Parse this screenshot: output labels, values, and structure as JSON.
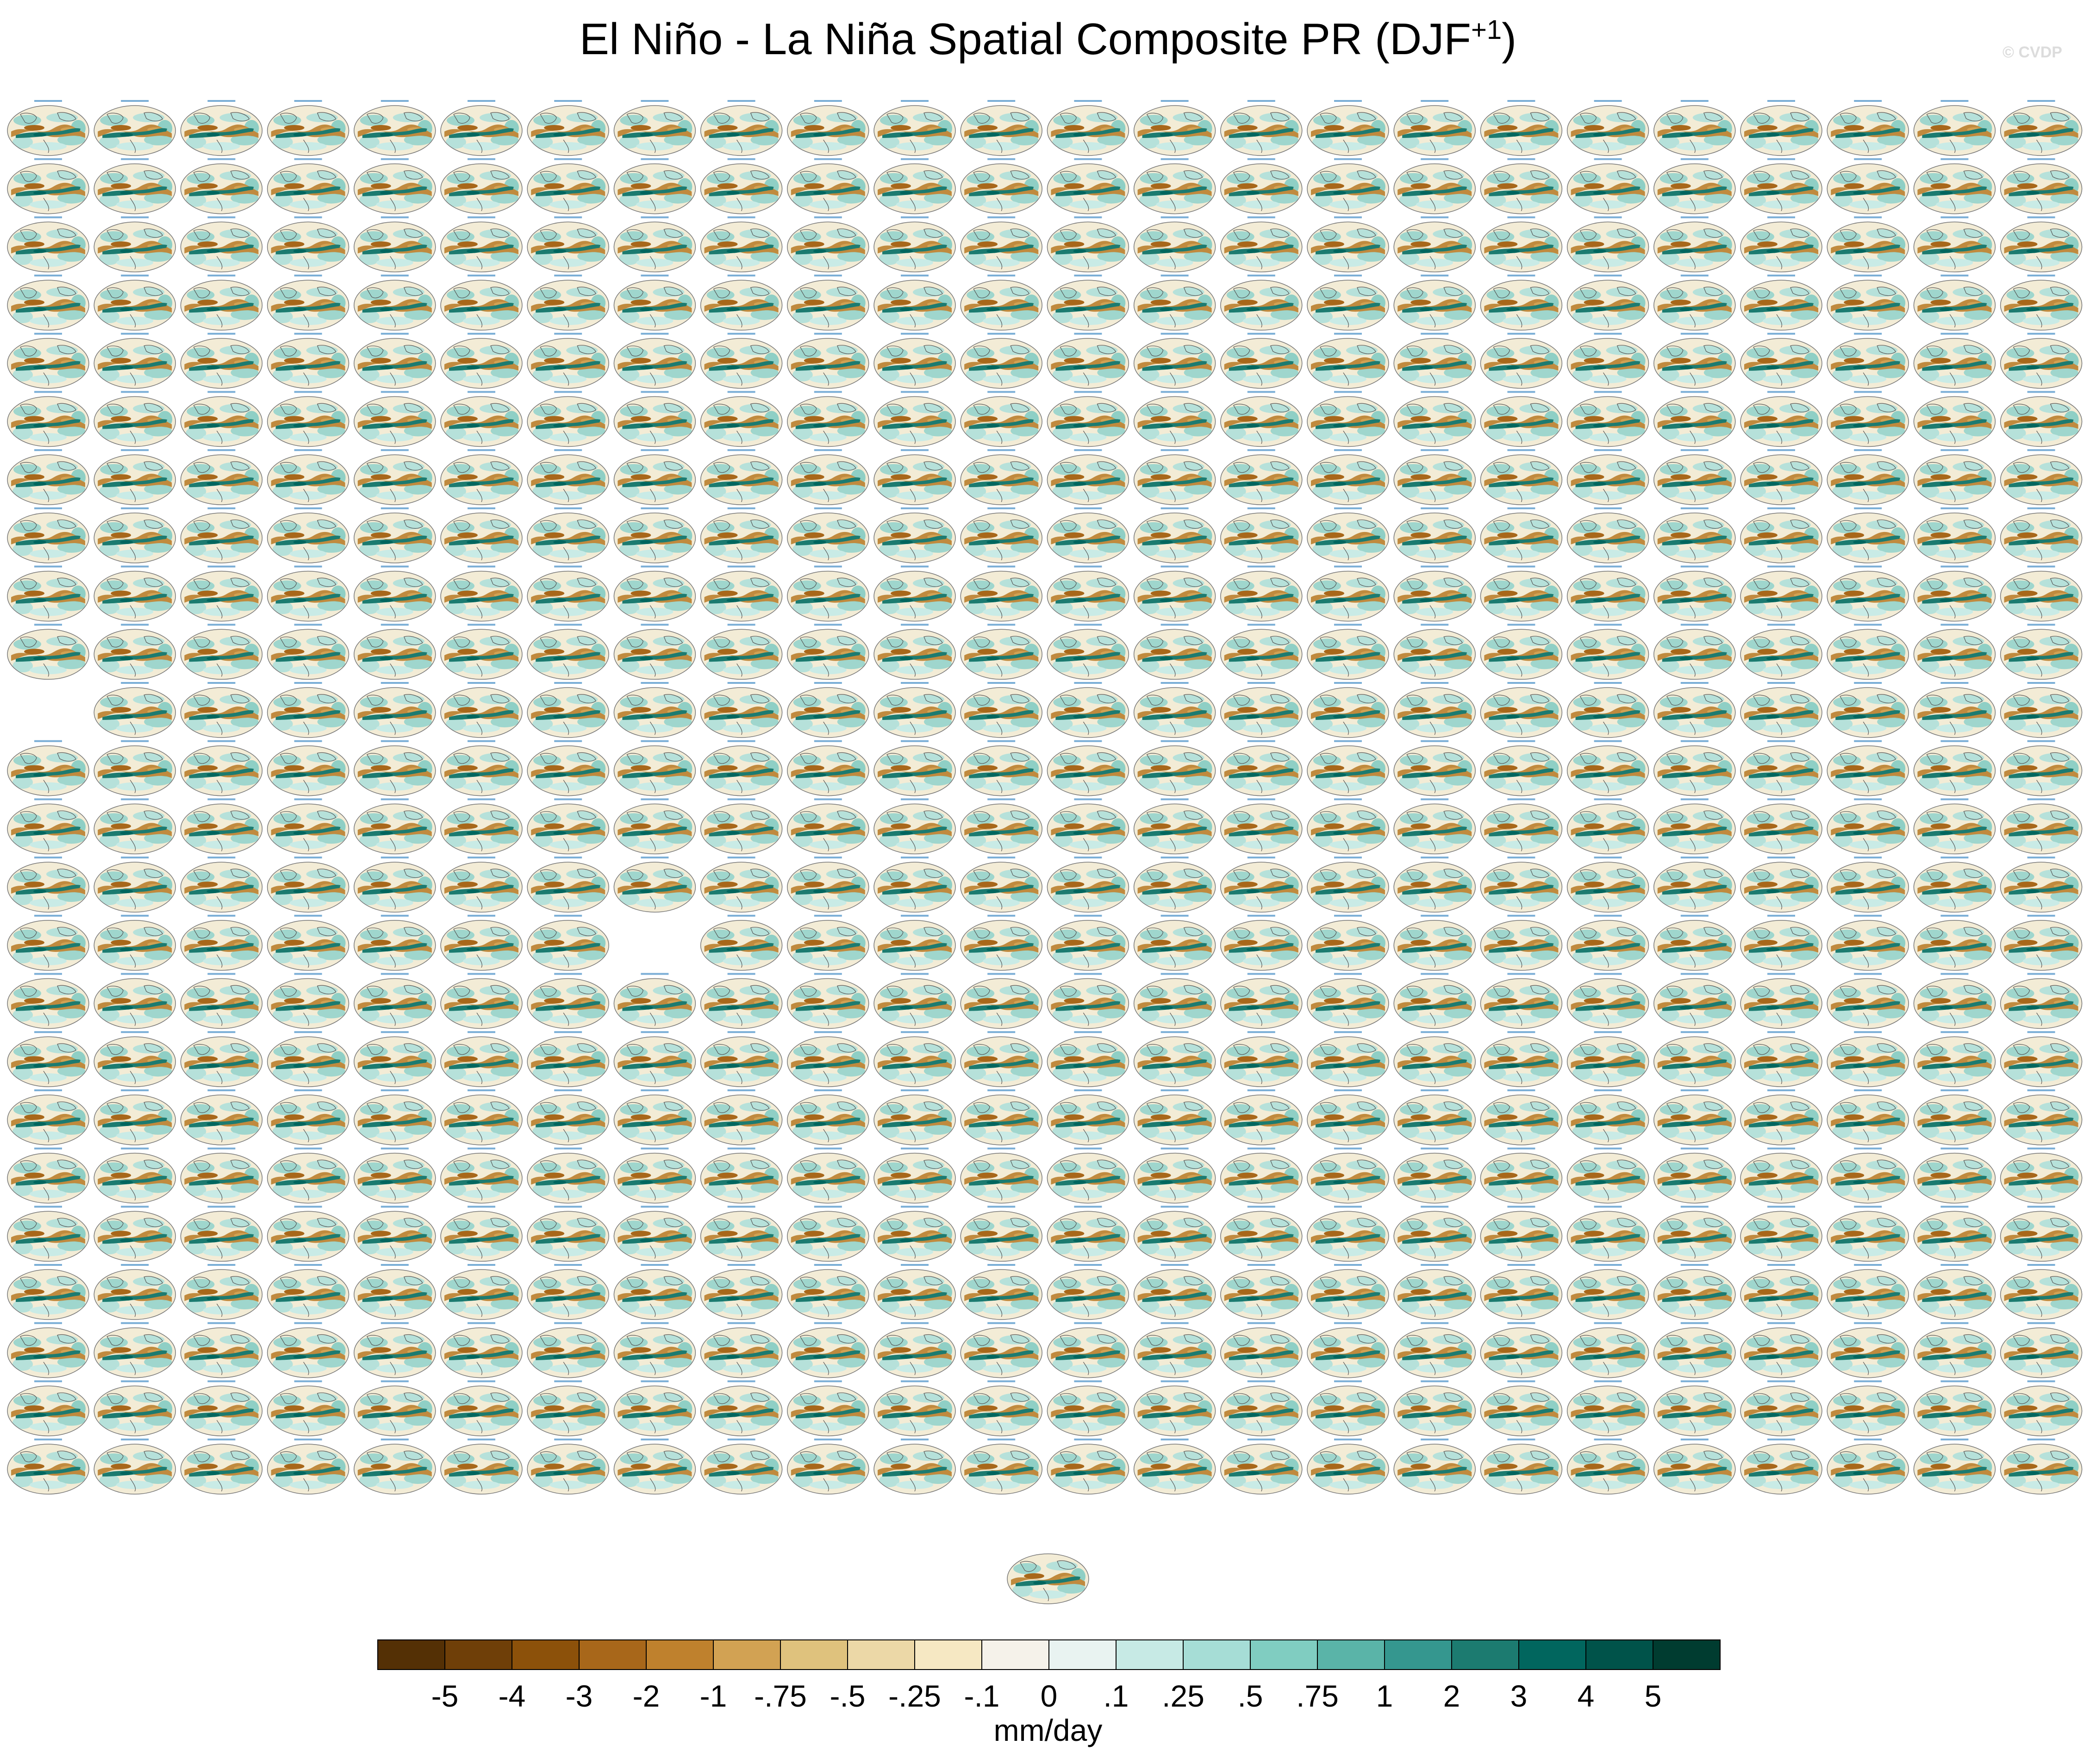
{
  "title": {
    "main": "El Niño - La Niña Spatial Composite PR (DJF",
    "sup": "+1",
    "close": ")"
  },
  "watermark": "© CVDP",
  "chart_data": {
    "type": "heatmap",
    "description_grid": {
      "rows": 24,
      "cols": 24,
      "blank_cells": [
        [
          10,
          0
        ],
        [
          14,
          7
        ]
      ],
      "extra_bottom_panel": true
    },
    "colorbar": {
      "unit_label": "mm/day",
      "tick_labels": [
        "-5",
        "-4",
        "-3",
        "-2",
        "-1",
        "-.75",
        "-.5",
        "-.25",
        "-.1",
        "0",
        ".1",
        ".25",
        ".5",
        ".75",
        "1",
        "2",
        "3",
        "4",
        "5"
      ],
      "colors": [
        "#543005",
        "#6f3f08",
        "#8c510a",
        "#a8671a",
        "#bf812d",
        "#d2a253",
        "#dfc27d",
        "#ecd8a7",
        "#f6e8c3",
        "#f5f2ea",
        "#e9f3f1",
        "#c7eae5",
        "#a6ddd6",
        "#80cdc1",
        "#5ab4a8",
        "#35978f",
        "#1c7b70",
        "#01665e",
        "#00534a",
        "#003c30"
      ]
    }
  }
}
